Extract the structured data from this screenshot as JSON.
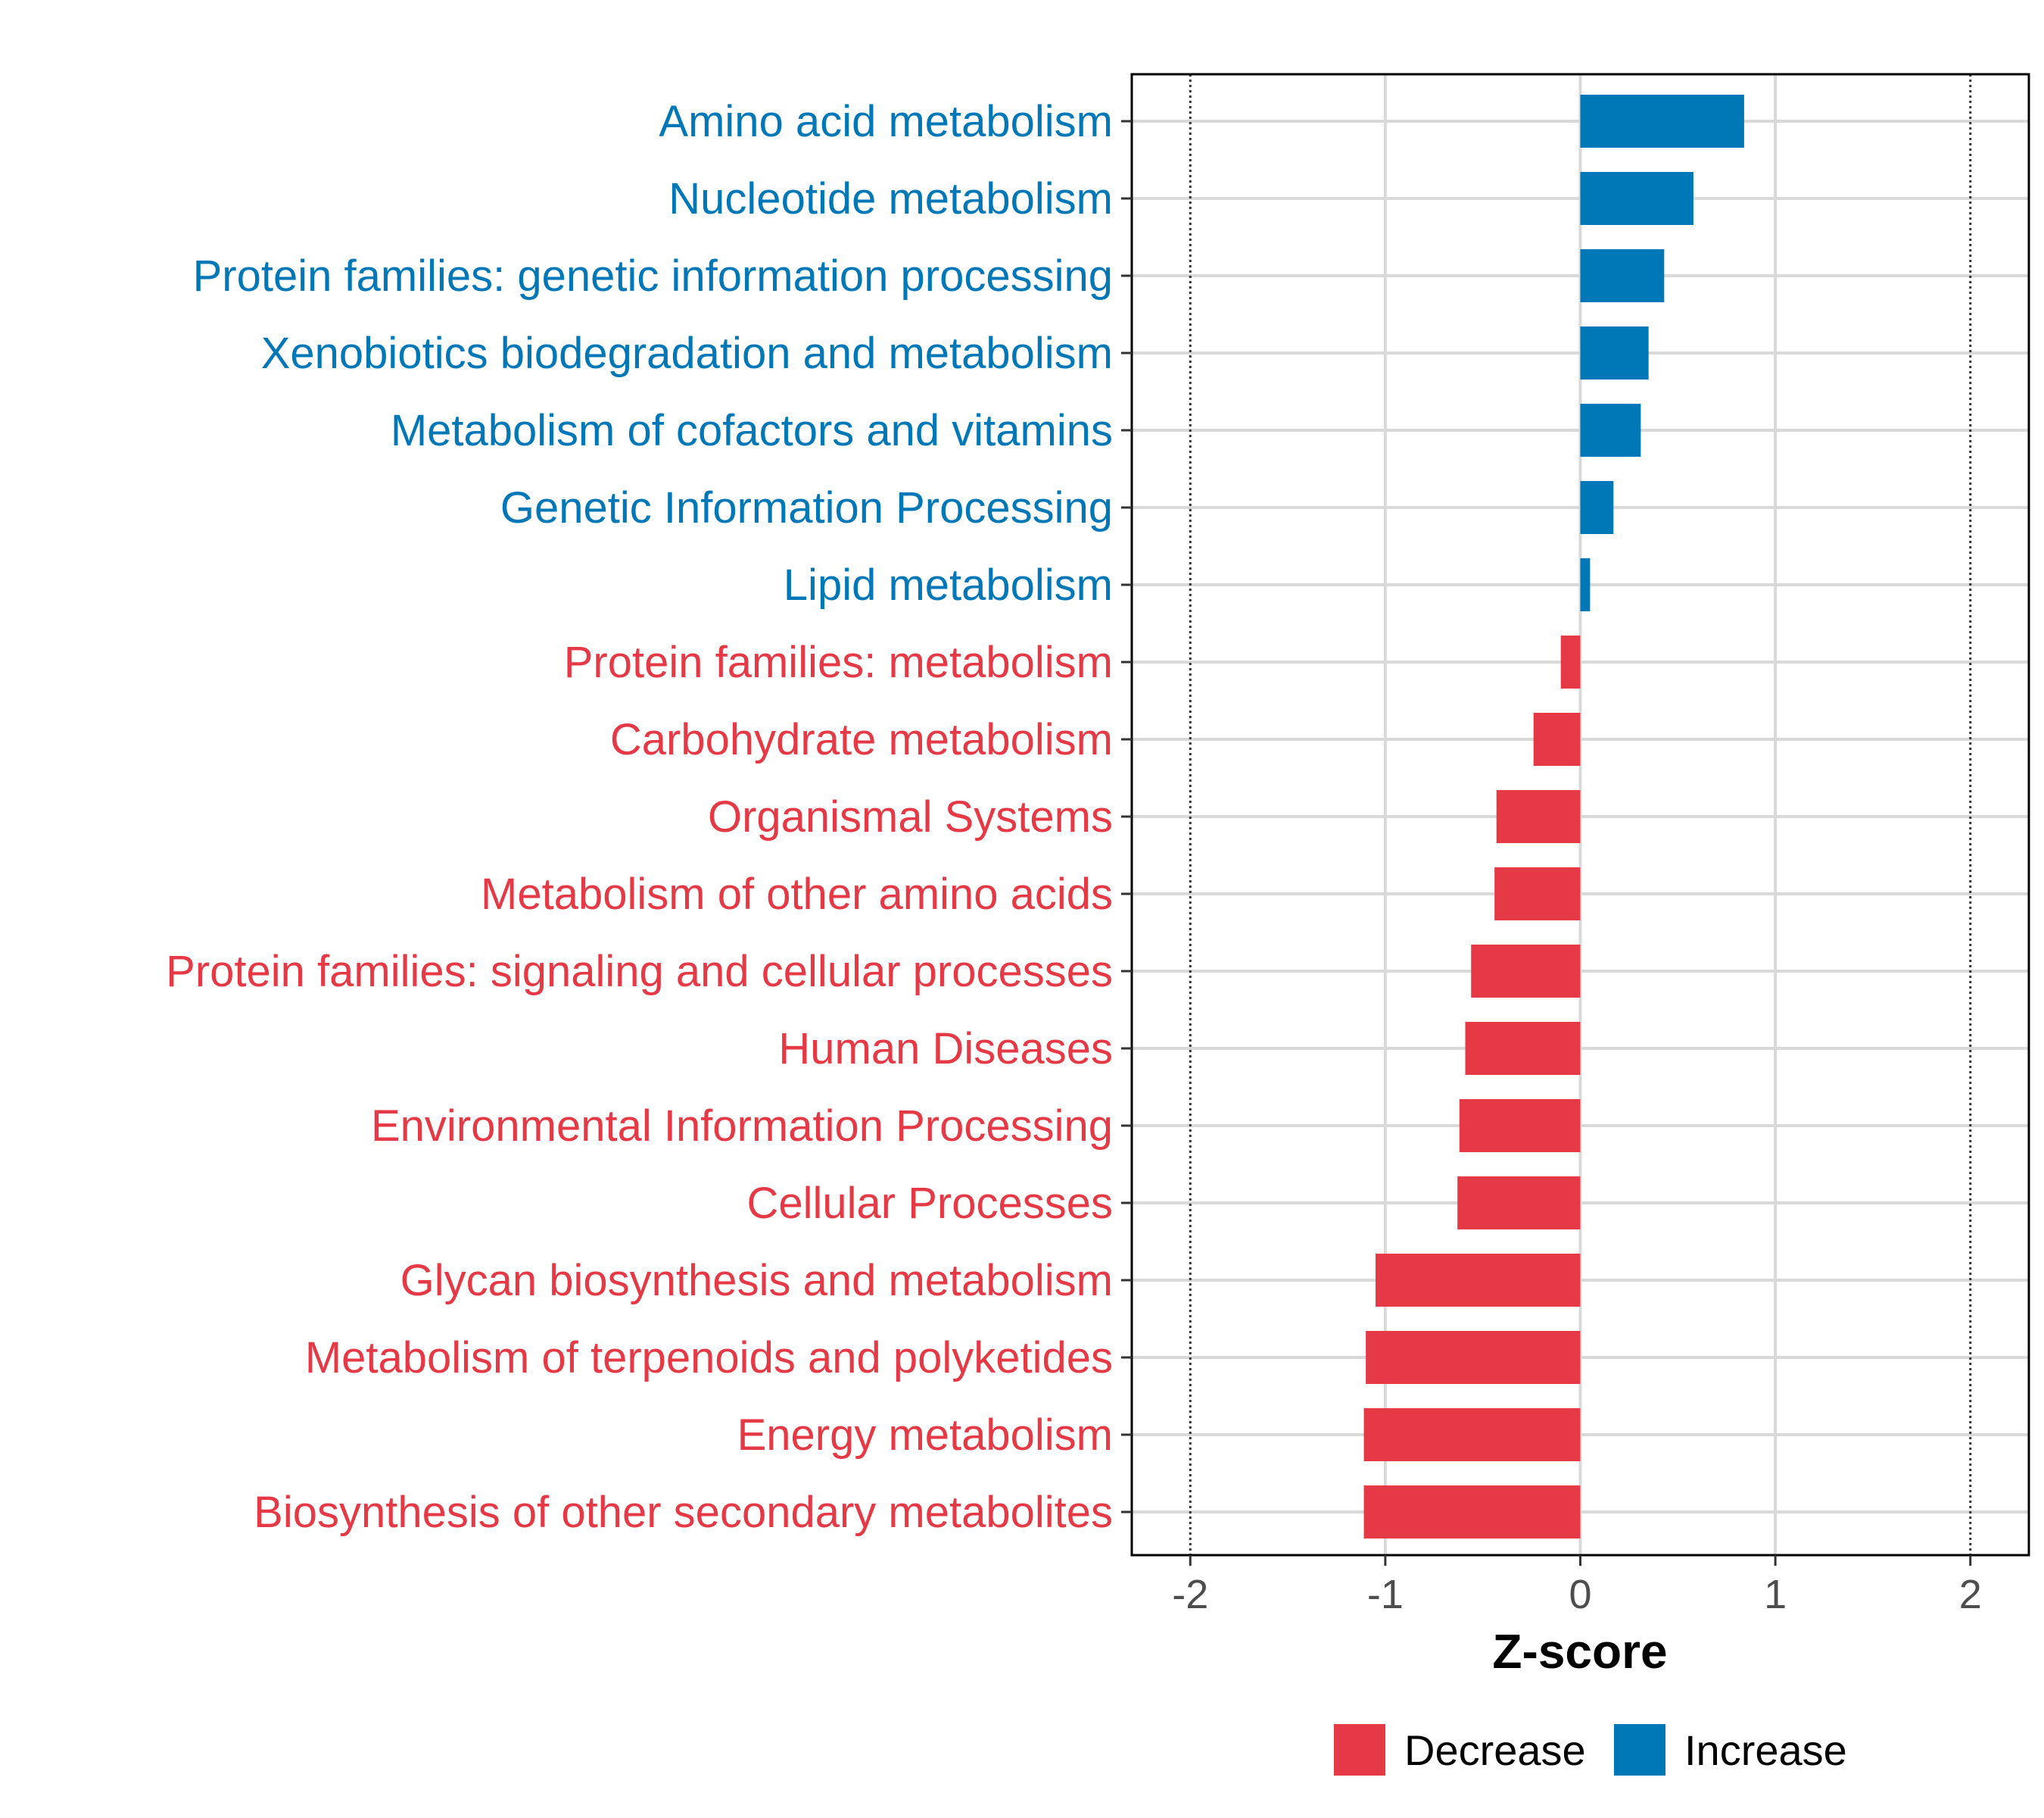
{
  "chart_data": {
    "type": "bar",
    "orientation": "horizontal",
    "xlabel": "Z-score",
    "xlim": [
      -2.3,
      2.3
    ],
    "xticks": [
      -2,
      -1,
      0,
      1,
      2
    ],
    "xtick_labels": [
      "-2",
      "-1",
      "0",
      "1",
      "2"
    ],
    "reference_lines": [
      -2,
      2
    ],
    "grid": true,
    "categories": [
      "Amino acid metabolism",
      "Nucleotide metabolism",
      "Protein families: genetic information processing",
      "Xenobiotics biodegradation and metabolism",
      "Metabolism of cofactors and vitamins",
      "Genetic Information Processing",
      "Lipid metabolism",
      "Protein families: metabolism",
      "Carbohydrate metabolism",
      "Organismal Systems",
      "Metabolism of other amino acids",
      "Protein families: signaling and cellular processes",
      "Human Diseases",
      "Environmental Information Processing",
      "Cellular Processes",
      "Glycan biosynthesis and metabolism",
      "Metabolism of terpenoids and polyketides",
      "Energy metabolism",
      "Biosynthesis of other secondary metabolites"
    ],
    "values": [
      0.84,
      0.58,
      0.43,
      0.35,
      0.31,
      0.17,
      0.05,
      -0.1,
      -0.24,
      -0.43,
      -0.44,
      -0.56,
      -0.59,
      -0.62,
      -0.63,
      -1.05,
      -1.1,
      -1.11,
      -1.11
    ],
    "groups": [
      "Increase",
      "Increase",
      "Increase",
      "Increase",
      "Increase",
      "Increase",
      "Increase",
      "Decrease",
      "Decrease",
      "Decrease",
      "Decrease",
      "Decrease",
      "Decrease",
      "Decrease",
      "Decrease",
      "Decrease",
      "Decrease",
      "Decrease",
      "Decrease"
    ],
    "legend": {
      "position": "bottom",
      "entries": [
        {
          "label": "Decrease",
          "color": "#E63946"
        },
        {
          "label": "Increase",
          "color": "#0077B6"
        }
      ]
    },
    "colors": {
      "Decrease": "#E63946",
      "Increase": "#0077B6"
    }
  }
}
